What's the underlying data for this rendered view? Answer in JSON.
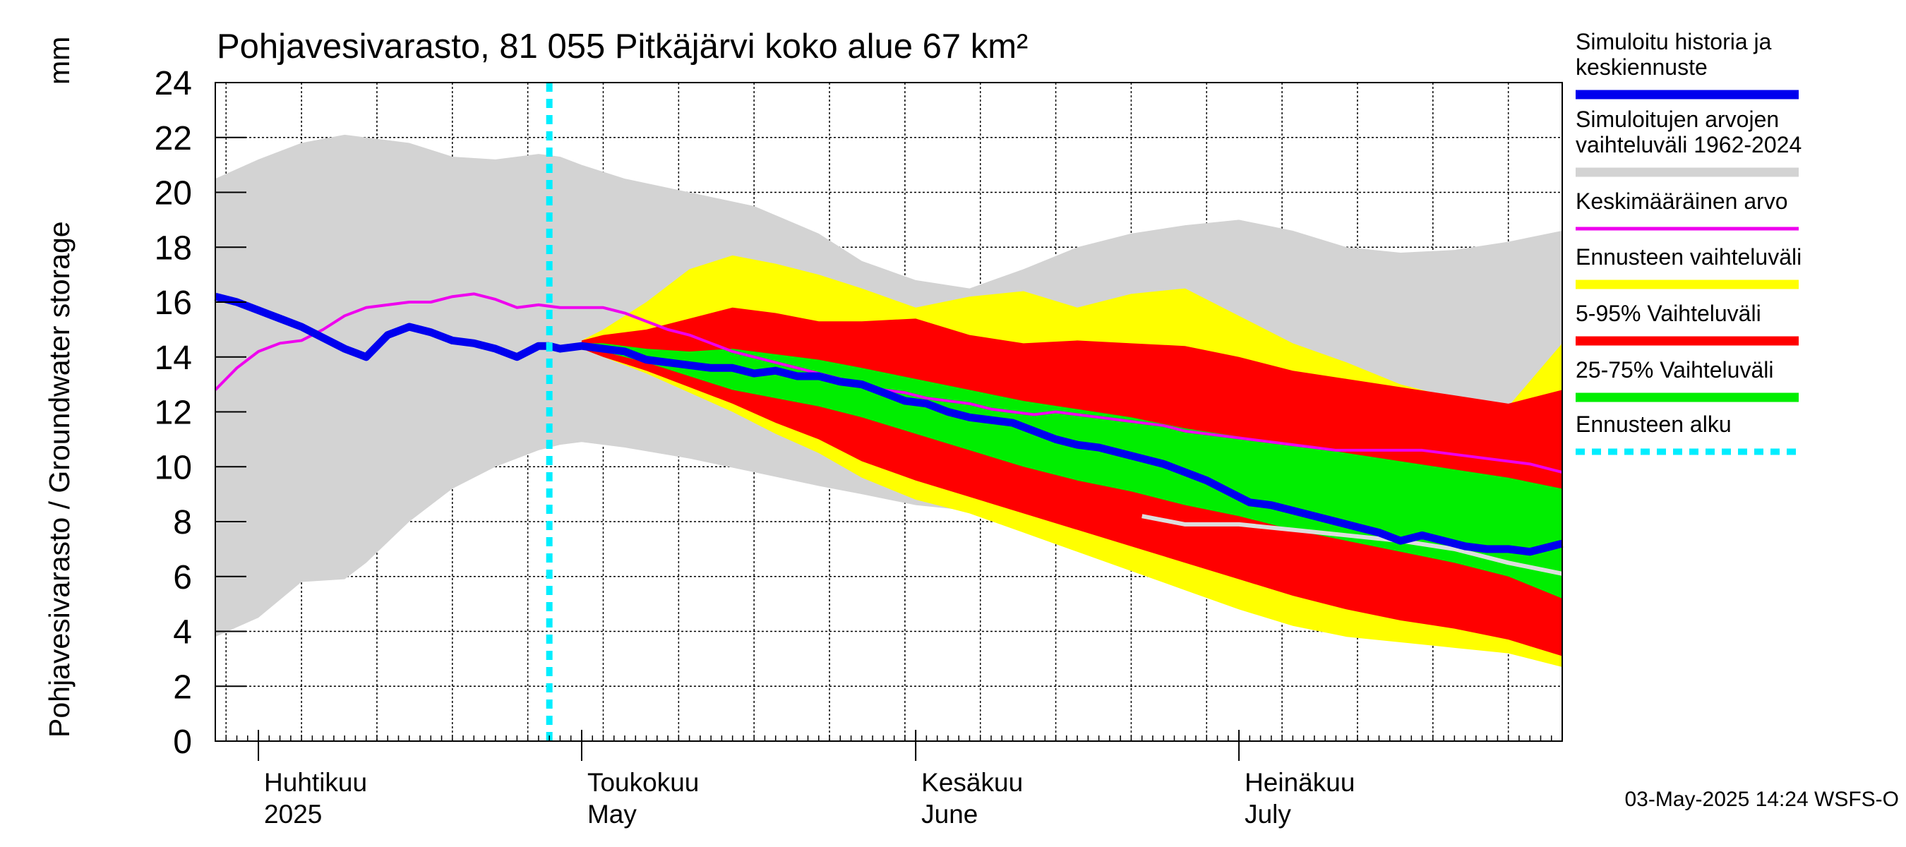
{
  "chart_data": {
    "type": "area",
    "title": "Pohjavesivarasto, 81 055 Pitkäjärvi koko alue 67 km²",
    "ylabel": "Pohjavesivarasto / Groundwater storage",
    "yunit": "mm",
    "ylim": [
      0,
      24
    ],
    "yticks": [
      0,
      2,
      4,
      6,
      8,
      10,
      12,
      14,
      16,
      18,
      20,
      22,
      24
    ],
    "x_unit": "days since 2025-03-28",
    "xlim": [
      0,
      125
    ],
    "month_starts": [
      4,
      34,
      65,
      95
    ],
    "month_labels": [
      {
        "fi": "Huhtikuu",
        "en": "2025",
        "day": 4
      },
      {
        "fi": "Toukokuu",
        "en": "May",
        "day": 34
      },
      {
        "fi": "Kesäkuu",
        "en": "June",
        "day": 65
      },
      {
        "fi": "Heinäkuu",
        "en": "July",
        "day": 95
      }
    ],
    "forecast_start_day": 31,
    "timestamp": "03-May-2025 14:24 WSFS-O",
    "legend": [
      {
        "label": "Simuloitu historia ja keskiennuste",
        "color": "#0000ee",
        "style": "thick"
      },
      {
        "label": "Simuloitujen arvojen vaihteluväli 1962-2024",
        "color": "#d3d3d3",
        "style": "band"
      },
      {
        "label": "Keskimääräinen arvo",
        "color": "#ee00ee",
        "style": "line"
      },
      {
        "label": "Ennusteen vaihteluväli",
        "color": "#ffff00",
        "style": "band"
      },
      {
        "label": "5-95% Vaihteluväli",
        "color": "#ff0000",
        "style": "band"
      },
      {
        "label": "25-75% Vaihteluväli",
        "color": "#00ee00",
        "style": "band"
      },
      {
        "label": "Ennusteen alku",
        "color": "#00eeff",
        "style": "dotted"
      }
    ],
    "series": {
      "hist_range": {
        "x": [
          0,
          4,
          8,
          12,
          14,
          18,
          22,
          26,
          30,
          32,
          34,
          38,
          44,
          50,
          56,
          60,
          65,
          70,
          75,
          80,
          85,
          90,
          95,
          100,
          105,
          110,
          115,
          120,
          125
        ],
        "upper": [
          20.5,
          21.2,
          21.8,
          22.1,
          22.0,
          21.8,
          21.3,
          21.2,
          21.4,
          21.3,
          21.0,
          20.5,
          20.0,
          19.5,
          18.5,
          17.5,
          16.8,
          16.5,
          17.2,
          18.0,
          18.5,
          18.8,
          19.0,
          18.6,
          18.0,
          17.8,
          17.9,
          18.2,
          18.6
        ],
        "lower": [
          3.8,
          4.5,
          5.8,
          5.9,
          6.5,
          8.0,
          9.2,
          10.0,
          10.6,
          10.8,
          10.9,
          10.7,
          10.3,
          9.8,
          9.3,
          9.0,
          8.6,
          8.4,
          8.2,
          8.0,
          7.7,
          7.4,
          7.1,
          6.9,
          6.6,
          6.4,
          6.3,
          6.2,
          6.1
        ]
      },
      "forecast_range": {
        "x": [
          34,
          36,
          40,
          44,
          48,
          52,
          56,
          60,
          65,
          70,
          75,
          80,
          85,
          90,
          95,
          100,
          105,
          110,
          115,
          120,
          125
        ],
        "upper": [
          14.6,
          15.0,
          16.0,
          17.2,
          17.7,
          17.4,
          17.0,
          16.5,
          15.8,
          16.2,
          16.4,
          15.8,
          16.3,
          16.5,
          15.5,
          14.5,
          13.8,
          13.0,
          12.5,
          12.2,
          14.5
        ],
        "lower": [
          14.3,
          14.0,
          13.4,
          12.7,
          12.0,
          11.2,
          10.5,
          9.6,
          8.8,
          8.3,
          7.6,
          6.9,
          6.2,
          5.5,
          4.8,
          4.2,
          3.8,
          3.6,
          3.4,
          3.2,
          2.7
        ]
      },
      "p5_95": {
        "x": [
          34,
          36,
          40,
          44,
          48,
          52,
          56,
          60,
          65,
          70,
          75,
          80,
          85,
          90,
          95,
          100,
          105,
          110,
          115,
          120,
          125
        ],
        "upper": [
          14.6,
          14.8,
          15.0,
          15.4,
          15.8,
          15.6,
          15.3,
          15.3,
          15.4,
          14.8,
          14.5,
          14.6,
          14.5,
          14.4,
          14.0,
          13.5,
          13.2,
          12.9,
          12.6,
          12.3,
          12.8
        ],
        "lower": [
          14.3,
          14.0,
          13.5,
          12.9,
          12.3,
          11.6,
          11.0,
          10.2,
          9.5,
          8.9,
          8.3,
          7.7,
          7.1,
          6.5,
          5.9,
          5.3,
          4.8,
          4.4,
          4.1,
          3.7,
          3.1
        ]
      },
      "p25_75": {
        "x": [
          34,
          36,
          40,
          44,
          48,
          52,
          56,
          60,
          65,
          70,
          75,
          80,
          85,
          90,
          95,
          100,
          105,
          110,
          115,
          120,
          125
        ],
        "upper": [
          14.5,
          14.5,
          14.3,
          14.2,
          14.3,
          14.1,
          13.9,
          13.6,
          13.2,
          12.8,
          12.4,
          12.1,
          11.8,
          11.4,
          11.1,
          10.8,
          10.5,
          10.2,
          9.9,
          9.6,
          9.2
        ],
        "lower": [
          14.4,
          14.2,
          13.8,
          13.3,
          12.8,
          12.5,
          12.2,
          11.8,
          11.2,
          10.6,
          10.0,
          9.5,
          9.1,
          8.6,
          8.2,
          7.7,
          7.3,
          6.9,
          6.5,
          6.0,
          5.2
        ]
      },
      "mean": {
        "x": [
          0,
          2,
          4,
          6,
          8,
          10,
          12,
          14,
          16,
          18,
          20,
          22,
          24,
          26,
          28,
          30,
          32,
          34,
          36,
          38,
          40,
          42,
          44,
          46,
          48,
          50,
          52,
          54,
          56,
          58,
          60,
          62,
          64,
          66,
          68,
          70,
          72,
          74,
          76,
          78,
          80,
          82,
          84,
          86,
          88,
          90,
          92,
          94,
          96,
          98,
          100,
          102,
          104,
          106,
          108,
          110,
          112,
          114,
          116,
          118,
          120,
          122,
          124,
          125
        ],
        "values": [
          12.8,
          13.6,
          14.2,
          14.5,
          14.6,
          15.0,
          15.5,
          15.8,
          15.9,
          16.0,
          16.0,
          16.2,
          16.3,
          16.1,
          15.8,
          15.9,
          15.8,
          15.8,
          15.8,
          15.6,
          15.3,
          15.0,
          14.8,
          14.5,
          14.2,
          14.0,
          13.8,
          13.6,
          13.4,
          13.2,
          13.0,
          12.8,
          12.7,
          12.5,
          12.4,
          12.3,
          12.1,
          12.0,
          11.9,
          12.0,
          11.9,
          11.8,
          11.7,
          11.6,
          11.5,
          11.3,
          11.2,
          11.1,
          11.0,
          10.9,
          10.8,
          10.7,
          10.6,
          10.6,
          10.6,
          10.6,
          10.6,
          10.5,
          10.4,
          10.3,
          10.2,
          10.1,
          9.9,
          9.8
        ]
      },
      "median_history": {
        "x": [
          0,
          2,
          4,
          6,
          8,
          10,
          12,
          14,
          16,
          18,
          20,
          22,
          24,
          26,
          28,
          30,
          31
        ],
        "values": [
          16.2,
          16.0,
          15.7,
          15.4,
          15.1,
          14.7,
          14.3,
          14.0,
          14.8,
          15.1,
          14.9,
          14.6,
          14.5,
          14.3,
          14.0,
          14.4,
          14.4
        ]
      },
      "median_forecast": {
        "x": [
          31,
          32,
          34,
          36,
          38,
          40,
          42,
          44,
          46,
          48,
          50,
          52,
          54,
          56,
          58,
          60,
          62,
          64,
          66,
          68,
          70,
          72,
          74,
          76,
          78,
          80,
          82,
          84,
          86,
          88,
          90,
          92,
          94,
          96,
          98,
          100,
          102,
          104,
          106,
          108,
          110,
          112,
          114,
          116,
          118,
          120,
          122,
          124,
          125
        ],
        "values": [
          14.4,
          14.3,
          14.4,
          14.3,
          14.2,
          13.9,
          13.8,
          13.7,
          13.6,
          13.6,
          13.4,
          13.5,
          13.3,
          13.3,
          13.1,
          13.0,
          12.7,
          12.4,
          12.3,
          12.0,
          11.8,
          11.7,
          11.6,
          11.3,
          11.0,
          10.8,
          10.7,
          10.5,
          10.3,
          10.1,
          9.8,
          9.5,
          9.1,
          8.7,
          8.6,
          8.4,
          8.2,
          8.0,
          7.8,
          7.6,
          7.3,
          7.5,
          7.3,
          7.1,
          7.0,
          7.0,
          6.9,
          7.1,
          7.2
        ]
      },
      "hist_low_white": {
        "x": [
          86,
          90,
          95,
          100,
          105,
          110,
          115,
          120,
          125
        ],
        "values": [
          8.2,
          7.9,
          7.9,
          7.7,
          7.5,
          7.3,
          7.0,
          6.5,
          6.1
        ]
      }
    }
  }
}
